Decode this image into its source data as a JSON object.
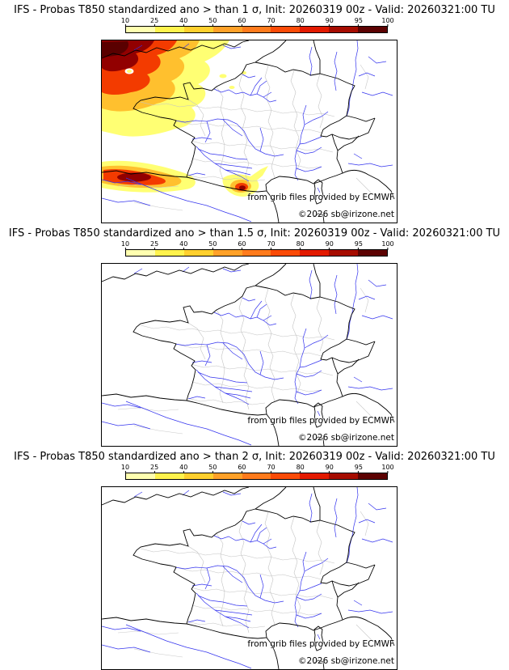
{
  "colorbar": {
    "tick_labels": [
      "10",
      "25",
      "40",
      "50",
      "60",
      "70",
      "80",
      "90",
      "95",
      "100"
    ],
    "segment_colors": [
      "#ffffb0",
      "#fff34d",
      "#ffd02e",
      "#ffa128",
      "#ff7b1c",
      "#fb4b07",
      "#e31a00",
      "#a60c00",
      "#5c0202"
    ],
    "unit": "%"
  },
  "panels": [
    {
      "title": "IFS - Probas T850  standardized ano > than 1 σ, Init: 20260319 00z - Valid: 20260321:00 TU",
      "credit_line1": "from grib files provided by ECMWF",
      "credit_line2": "©2026 sb@irizone.net"
    },
    {
      "title": "IFS - Probas T850  standardized ano > than 1.5 σ, Init: 20260319 00z - Valid: 20260321:00 TU",
      "credit_line1": "from grib files provided by ECMWF",
      "credit_line2": "©2026 sb@irizone.net"
    },
    {
      "title": "IFS - Probas T850  standardized ano > than 2 σ, Init: 20260319 00z - Valid: 20260321:00 TU",
      "credit_line1": "from grib files provided by ECMWF",
      "credit_line2": "©2026 sb@irizone.net"
    }
  ],
  "chart_data": [
    {
      "type": "heatmap",
      "title": "IFS - Probas T850 standardized ano > than 1 σ",
      "model": "IFS",
      "variable": "Probability of T850 standardized anomaly",
      "threshold": "> 1 σ",
      "init": "20260319 00z",
      "valid": "20260321:00 TU",
      "region": "France and surrounding area (map)",
      "colorbar_ticks": [
        10,
        25,
        40,
        50,
        60,
        70,
        80,
        90,
        95,
        100
      ],
      "colorbar_unit": "%",
      "legend_position": "top",
      "summary": "Large area of high probabilities (70-100%) over the Atlantic west and northwest of Brittany reaching the Channel; second elongated maximum (up to 90-100%) over the Bay of Biscay along the northern Spanish coast; moderate local maximum (25-95%) over Languedoc near the Mediterranean coast; scattered 10-25% patches over western and central France."
    },
    {
      "type": "heatmap",
      "title": "IFS - Probas T850 standardized ano > than 1.5 σ",
      "model": "IFS",
      "variable": "Probability of T850 standardized anomaly",
      "threshold": "> 1.5 σ",
      "init": "20260319 00z",
      "valid": "20260321:00 TU",
      "region": "France and surrounding area (map)",
      "colorbar_ticks": [
        10,
        25,
        40,
        50,
        60,
        70,
        80,
        90,
        95,
        100
      ],
      "colorbar_unit": "%",
      "legend_position": "top",
      "summary": "No areas exceed the 10% probability threshold; map is clear."
    },
    {
      "type": "heatmap",
      "title": "IFS - Probas T850 standardized ano > than 2 σ",
      "model": "IFS",
      "variable": "Probability of T850 standardized anomaly",
      "threshold": "> 2 σ",
      "init": "20260319 00z",
      "valid": "20260321:00 TU",
      "region": "France and surrounding area (map)",
      "colorbar_ticks": [
        10,
        25,
        40,
        50,
        60,
        70,
        80,
        90,
        95,
        100
      ],
      "colorbar_unit": "%",
      "legend_position": "top",
      "summary": "No areas exceed the 10% probability threshold; map is clear."
    }
  ]
}
